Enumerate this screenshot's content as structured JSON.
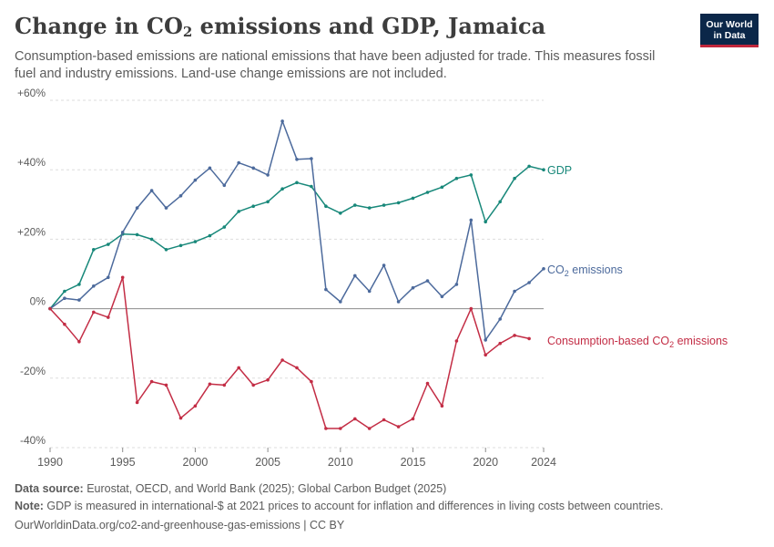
{
  "header": {
    "title_main": "Change in CO",
    "title_sub": "2",
    "title_rest": " emissions and GDP, Jamaica",
    "subtitle": "Consumption-based emissions are national emissions that have been adjusted for trade. This measures fossil fuel and industry emissions. Land-use change emissions are not included.",
    "logo_line1": "Our World",
    "logo_line2": "in Data"
  },
  "footer": {
    "source_label": "Data source:",
    "source_text": " Eurostat, OECD, and World Bank (2025); Global Carbon Budget (2025)",
    "note_label": "Note:",
    "note_text": " GDP is measured in international-$ at 2021 prices to account for inflation and differences in living costs between countries.",
    "url": "OurWorldinData.org/co2-and-greenhouse-gas-emissions | CC BY"
  },
  "colors": {
    "gdp": "#18887a",
    "co2": "#4c6a9c",
    "consumption": "#c32d45",
    "grid": "#dddddd",
    "zero_line": "#8c8c8c",
    "text": "#5b5b5b"
  },
  "chart_data": {
    "type": "line",
    "title": "Change in CO₂ emissions and GDP, Jamaica",
    "ylim": [
      -40,
      60
    ],
    "y_ticks": [
      -40,
      -20,
      0,
      20,
      40,
      60
    ],
    "y_tick_labels": [
      "-40%",
      "-20%",
      "0%",
      "+20%",
      "+40%",
      "+60%"
    ],
    "x_range": [
      1990,
      2024
    ],
    "x_ticks": [
      1990,
      1995,
      2000,
      2005,
      2010,
      2015,
      2020,
      2024
    ],
    "x_tick_labels": [
      "1990",
      "1995",
      "2000",
      "2005",
      "2010",
      "2015",
      "2020",
      "2024"
    ],
    "x": [
      1990,
      1991,
      1992,
      1993,
      1994,
      1995,
      1996,
      1997,
      1998,
      1999,
      2000,
      2001,
      2002,
      2003,
      2004,
      2005,
      2006,
      2007,
      2008,
      2009,
      2010,
      2011,
      2012,
      2013,
      2014,
      2015,
      2016,
      2017,
      2018,
      2019,
      2020,
      2021,
      2022,
      2023,
      2024
    ],
    "series": [
      {
        "name": "GDP",
        "key": "gdp",
        "values": [
          0,
          5,
          7,
          17,
          18.5,
          21.5,
          21.3,
          20,
          17,
          18.2,
          19.3,
          21,
          23.5,
          28,
          29.5,
          30.8,
          34.5,
          36.3,
          35.2,
          29.5,
          27.5,
          29.8,
          29,
          29.8,
          30.5,
          31.8,
          33.5,
          35,
          37.5,
          38.5,
          25,
          30.8,
          37.5,
          41,
          40
        ]
      },
      {
        "name": "CO₂ emissions",
        "key": "co2",
        "values": [
          0,
          3,
          2.5,
          6.5,
          9,
          22,
          29,
          34,
          29,
          32.5,
          37,
          40.5,
          35.5,
          42,
          40.5,
          38.5,
          54,
          43,
          43.2,
          5.5,
          2,
          9.5,
          5,
          12.5,
          2,
          6,
          8,
          3.5,
          7,
          25.5,
          -9,
          -3,
          5,
          7.5,
          11.5
        ]
      },
      {
        "name": "Consumption-based CO₂ emissions",
        "key": "consumption",
        "values": [
          0,
          -4.5,
          -9.5,
          -1,
          -2.5,
          9,
          -27,
          -21,
          -22,
          -31.5,
          -28,
          -21.7,
          -22,
          -17,
          -22,
          -20.5,
          -14.8,
          -17,
          -21,
          -34.5,
          -34.5,
          -31.7,
          -34.5,
          -32,
          -34,
          -31.7,
          -21.5,
          -28,
          -9.3,
          0,
          -13.3,
          -10,
          -7.7,
          -8.6,
          null
        ]
      }
    ],
    "labels": {
      "gdp": "GDP",
      "co2_main": "CO",
      "co2_sub": "2",
      "co2_rest": " emissions",
      "consumption_main": "Consumption-based CO",
      "consumption_sub": "2",
      "consumption_rest": " emissions"
    }
  }
}
